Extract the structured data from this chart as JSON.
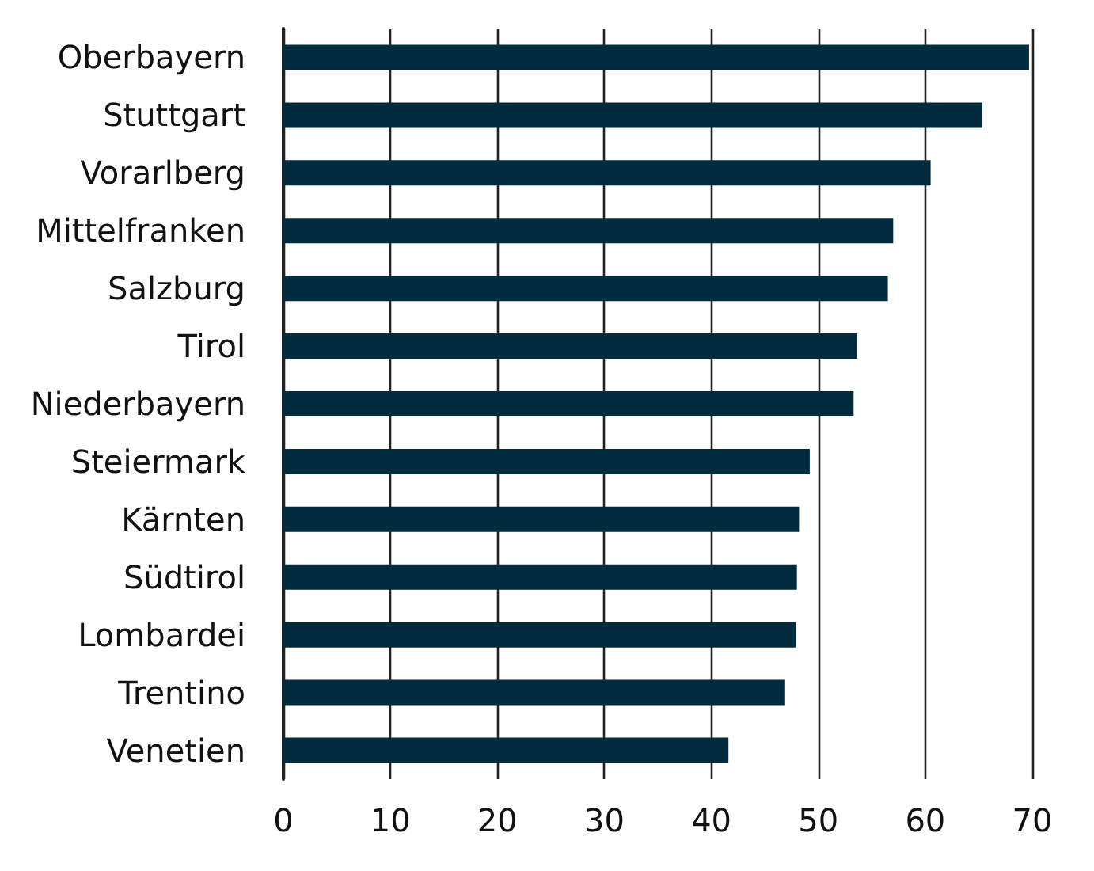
{
  "chart_data": {
    "type": "bar",
    "orientation": "horizontal",
    "categories": [
      "Oberbayern",
      "Stuttgart",
      "Vorarlberg",
      "Mittelfranken",
      "Salzburg",
      "Tirol",
      "Niederbayern",
      "Steiermark",
      "Kärnten",
      "Südtirol",
      "Lombardei",
      "Trentino",
      "Venetien"
    ],
    "values": [
      69.7,
      65.3,
      60.5,
      57.0,
      56.5,
      53.6,
      53.3,
      49.2,
      48.2,
      48.0,
      47.9,
      46.9,
      41.6
    ],
    "color": "#022b3e",
    "xlim": [
      0,
      70
    ],
    "xticks": [
      0,
      10,
      20,
      30,
      40,
      50,
      60,
      70
    ],
    "grid": "x"
  }
}
